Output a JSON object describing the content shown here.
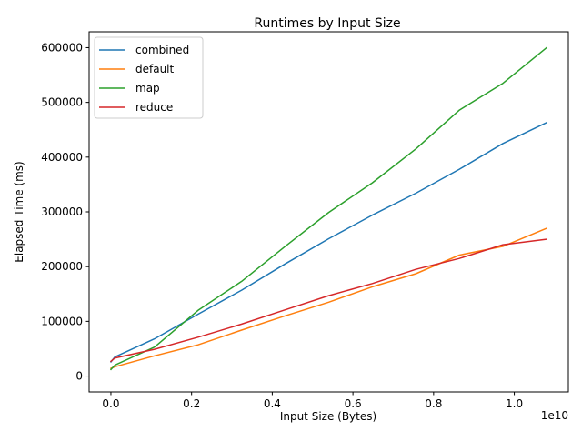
{
  "chart_data": {
    "type": "line",
    "title": "Runtimes by Input Size",
    "xlabel": "Input Size (Bytes)",
    "ylabel": "Elapsed Time (ms)",
    "x_offset_label": "1e10",
    "xlim": [
      -0.054,
      1.134
    ],
    "ylim": [
      -29000,
      629000
    ],
    "xticks": [
      0.0,
      0.2,
      0.4,
      0.6,
      0.8,
      1.0
    ],
    "xtick_labels": [
      "0.0",
      "0.2",
      "0.4",
      "0.6",
      "0.8",
      "1.0"
    ],
    "yticks": [
      0,
      100000,
      200000,
      300000,
      400000,
      500000,
      600000
    ],
    "ytick_labels": [
      "0",
      "100000",
      "200000",
      "300000",
      "400000",
      "500000",
      "600000"
    ],
    "grid": false,
    "legend_position": "top-left",
    "series": [
      {
        "name": "combined",
        "color": "#1f77b4",
        "x": [
          0.0,
          0.01,
          0.108,
          0.216,
          0.324,
          0.432,
          0.54,
          0.648,
          0.756,
          0.864,
          0.972,
          1.08
        ],
        "y": [
          26000,
          35000,
          68000,
          113000,
          157000,
          205000,
          251000,
          294000,
          334000,
          378000,
          425000,
          463000
        ]
      },
      {
        "name": "default",
        "color": "#ff7f0e",
        "x": [
          0.0,
          0.01,
          0.108,
          0.216,
          0.324,
          0.432,
          0.54,
          0.648,
          0.756,
          0.864,
          0.972,
          1.08
        ],
        "y": [
          14000,
          17000,
          37000,
          57000,
          84000,
          110000,
          135000,
          163000,
          187000,
          221000,
          237000,
          270000
        ]
      },
      {
        "name": "map",
        "color": "#2ca02c",
        "x": [
          0.0,
          0.01,
          0.108,
          0.216,
          0.324,
          0.432,
          0.54,
          0.648,
          0.756,
          0.864,
          0.972,
          1.08
        ],
        "y": [
          12000,
          20000,
          53000,
          120000,
          173000,
          237000,
          299000,
          353000,
          415000,
          486000,
          535000,
          600000
        ]
      },
      {
        "name": "reduce",
        "color": "#d62728",
        "x": [
          0.0,
          0.01,
          0.108,
          0.216,
          0.324,
          0.432,
          0.54,
          0.648,
          0.756,
          0.864,
          0.972,
          1.08
        ],
        "y": [
          27000,
          33000,
          49000,
          71000,
          95000,
          121000,
          147000,
          169000,
          195000,
          215000,
          240000,
          250000
        ]
      }
    ]
  }
}
